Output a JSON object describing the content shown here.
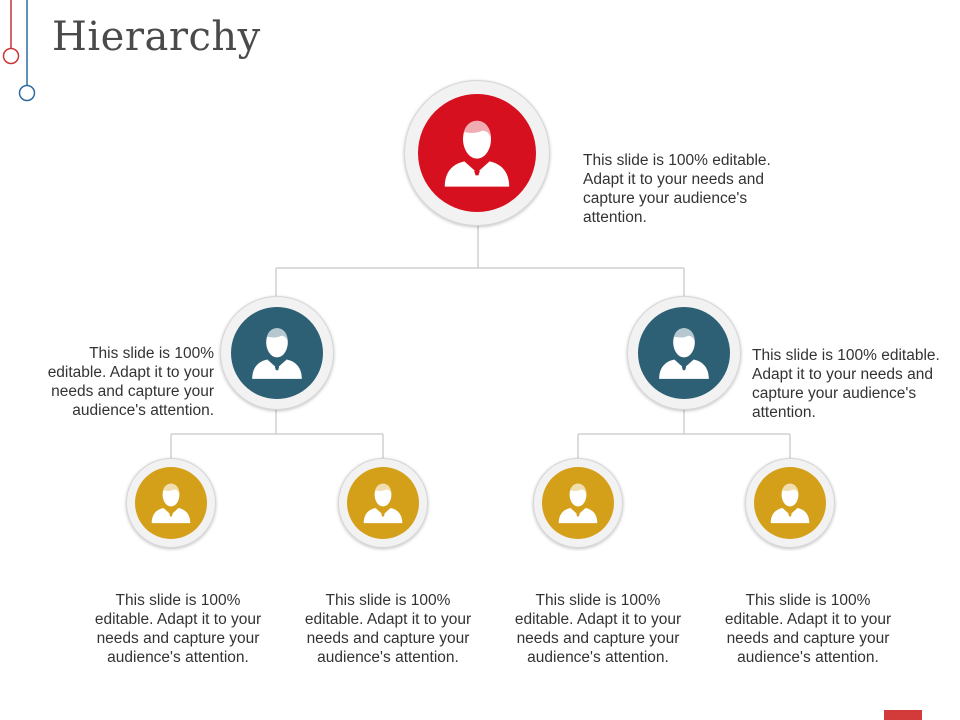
{
  "title": "Hierarchy",
  "colors": {
    "top": "#d7101f",
    "mid": "#2d6075",
    "bottom": "#d4a01a",
    "accent_red": "#c9363a",
    "accent_blue": "#2d6a9f"
  },
  "icon": "person-icon",
  "nodes": {
    "top": {
      "text": "This slide is 100% editable. Adapt it to your needs and capture your audience's attention."
    },
    "mid_left": {
      "text": "This slide is 100% editable. Adapt it to your needs and capture your audience's attention."
    },
    "mid_right": {
      "text": "This slide is 100% editable. Adapt it to your needs and capture your audience's attention."
    },
    "bottom": [
      {
        "text": "This slide is 100% editable. Adapt it to your needs and capture your audience's attention."
      },
      {
        "text": "This slide is 100% editable. Adapt it to your needs and capture your audience's attention."
      },
      {
        "text": "This slide is 100% editable. Adapt it to your needs and capture your audience's attention."
      },
      {
        "text": "This slide is 100% editable. Adapt it to your needs and capture your audience's attention."
      }
    ]
  }
}
